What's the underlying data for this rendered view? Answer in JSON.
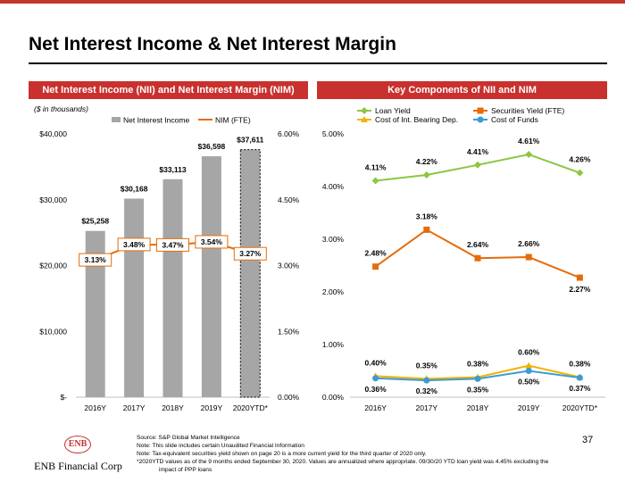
{
  "page": {
    "title": "Net Interest Income & Net Interest Margin",
    "page_number": "37"
  },
  "left_panel": {
    "header": "Net Interest Income (NII) and Net Interest Margin (NIM)",
    "units_note": "($ in thousands)"
  },
  "right_panel": {
    "header": "Key Components of NII and NIM"
  },
  "colors": {
    "accent": "#c8312e",
    "bar": "#a6a6a6",
    "nim_line": "#e46c0a",
    "loan": "#8dc63f",
    "securities": "#e46c0a",
    "int_bearing": "#f0b400",
    "cost_funds": "#3c9bd6"
  },
  "chart_data": [
    {
      "type": "bar",
      "categories": [
        "2016Y",
        "2017Y",
        "2018Y",
        "2019Y",
        "2020YTD*"
      ],
      "series": [
        {
          "name": "Net Interest Income",
          "type": "bar",
          "axis": "left",
          "values": [
            25258,
            30168,
            33113,
            36598,
            37611
          ],
          "labels": [
            "$25,258",
            "$30,168",
            "$33,113",
            "$36,598",
            "$37,611"
          ]
        },
        {
          "name": "NIM (FTE)",
          "type": "line",
          "axis": "right",
          "values": [
            3.13,
            3.48,
            3.47,
            3.54,
            3.27
          ],
          "labels": [
            "3.13%",
            "3.48%",
            "3.47%",
            "3.54%",
            "3.27%"
          ]
        }
      ],
      "ylim": [
        0,
        40000
      ],
      "y_ticks": [
        "$-",
        "$10,000",
        "$20,000",
        "$30,000",
        "$40,000"
      ],
      "y2lim": [
        0,
        6
      ],
      "y2_ticks": [
        "0.00%",
        "1.50%",
        "3.00%",
        "4.50%",
        "6.00%"
      ],
      "legend_position": "top",
      "grid": false
    },
    {
      "type": "line",
      "categories": [
        "2016Y",
        "2017Y",
        "2018Y",
        "2019Y",
        "2020YTD*"
      ],
      "series": [
        {
          "name": "Loan Yield",
          "values": [
            4.11,
            4.22,
            4.41,
            4.61,
            4.26
          ],
          "labels": [
            "4.11%",
            "4.22%",
            "4.41%",
            "4.61%",
            "4.26%"
          ]
        },
        {
          "name": "Securities Yield (FTE)",
          "values": [
            2.48,
            3.18,
            2.64,
            2.66,
            2.27
          ],
          "labels": [
            "2.48%",
            "3.18%",
            "2.64%",
            "2.66%",
            "2.27%"
          ]
        },
        {
          "name": "Cost of Int. Bearing Dep.",
          "values": [
            0.4,
            0.35,
            0.38,
            0.6,
            0.38
          ],
          "labels": [
            "0.40%",
            "0.35%",
            "0.38%",
            "0.60%",
            "0.38%"
          ]
        },
        {
          "name": "Cost of Funds",
          "values": [
            0.36,
            0.32,
            0.35,
            0.5,
            0.37
          ],
          "labels": [
            "0.36%",
            "0.32%",
            "0.35%",
            "0.50%",
            "0.37%"
          ]
        }
      ],
      "ylim": [
        0,
        5
      ],
      "y_ticks": [
        "0.00%",
        "1.00%",
        "2.00%",
        "3.00%",
        "4.00%",
        "5.00%"
      ],
      "legend_position": "top",
      "grid": false
    }
  ],
  "footnotes": [
    "Source: S&P Global Market Intelligence",
    "Note:  This slide includes certain Unaudited Financial Information",
    "Note:    Tax-equivalent securities yield shown on page 20 is a more current yield for the third quarter of 2020 only.",
    "*2020YTD values as of the 9 months ended September 30, 2020. Values are annualized where appropriate.  09/30/20 YTD loan yield was 4.45% excluding the",
    "impact of PPP loans"
  ],
  "logo": {
    "initials": "ENB",
    "name": "ENB Financial Corp"
  }
}
